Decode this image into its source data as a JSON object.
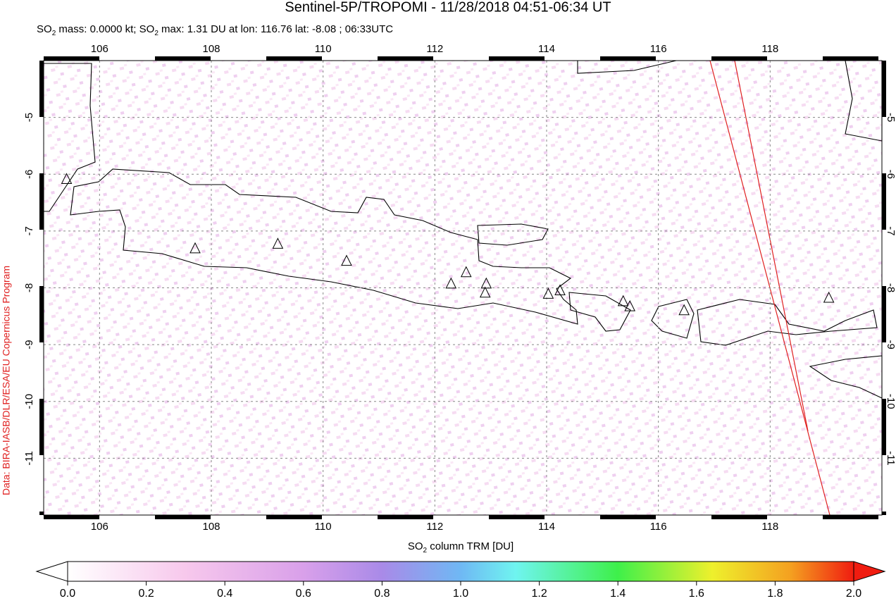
{
  "chart_data": {
    "type": "map",
    "title": "Sentinel-5P/TROPOMI - 11/28/2018 04:51-06:34 UT",
    "subtitle_parts": [
      "SO",
      "2",
      " mass: 0.0000 kt; SO",
      "2",
      " max: 1.31 DU at lon: 116.76 lat: -8.08 ; 06:33UTC"
    ],
    "credit": "Data: BIRA-IASB/DLR/ESA/EU Copernicus Program",
    "xlim": [
      105,
      120
    ],
    "ylim": [
      -12,
      -4
    ],
    "xticks": [
      106,
      108,
      110,
      112,
      114,
      116,
      118
    ],
    "yticks": [
      -5,
      -6,
      -7,
      -8,
      -9,
      -10,
      -11
    ],
    "grid": true,
    "volcanoes": {
      "lon": [
        105.41,
        107.71,
        109.19,
        110.42,
        112.29,
        112.56,
        112.92,
        112.9,
        114.03,
        114.24,
        115.37,
        115.49,
        116.46,
        119.05
      ],
      "lat": [
        -6.09,
        -7.31,
        -7.23,
        -7.53,
        -7.93,
        -7.73,
        -7.93,
        -8.09,
        -8.11,
        -8.05,
        -8.24,
        -8.33,
        -8.4,
        -8.18
      ]
    },
    "colorbar": {
      "label_parts": [
        "SO",
        "2",
        " column TRM [DU]"
      ],
      "lim": [
        0,
        2
      ],
      "ticks": [
        {
          "value": 0,
          "label": "0.0"
        },
        {
          "value": 0.2,
          "label": "0.2"
        },
        {
          "value": 0.4,
          "label": "0.4"
        },
        {
          "value": 0.6,
          "label": "0.6"
        },
        {
          "value": 0.8,
          "label": "0.8"
        },
        {
          "value": 1,
          "label": "1.0"
        },
        {
          "value": 1.2,
          "label": "1.2"
        },
        {
          "value": 1.4,
          "label": "1.4"
        },
        {
          "value": 1.6,
          "label": "1.6"
        },
        {
          "value": 1.8,
          "label": "1.8"
        },
        {
          "value": 2,
          "label": "2.0"
        }
      ]
    }
  }
}
